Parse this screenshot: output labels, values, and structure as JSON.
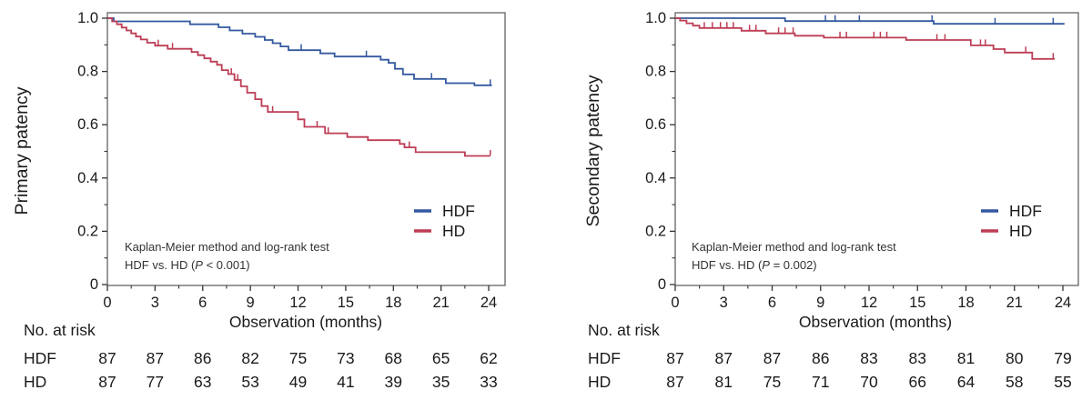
{
  "chart_data": [
    {
      "type": "line",
      "subtype": "kaplan-meier-step",
      "title": "",
      "ylabel": "Primary patency",
      "xlabel": "Observation (months)",
      "xlim": [
        0,
        25
      ],
      "ylim": [
        0,
        1.0
      ],
      "xticks": [
        0,
        3,
        6,
        9,
        12,
        15,
        18,
        21,
        24
      ],
      "ytick_values": [
        1.0,
        0.8,
        0.6,
        0.4,
        0.2,
        0
      ],
      "ytick_labels": [
        "1.0",
        "0.8",
        "0.6",
        "0.4",
        "0.2",
        "0"
      ],
      "grid": false,
      "legend_position": "inside-right-lower",
      "annotation": {
        "line1": "Kaplan-Meier method and log-rank test",
        "line2_pre": "HDF vs. HD (",
        "line2_italic": "P",
        "line2_post": " < 0.001)"
      },
      "series": [
        {
          "name": "HDF",
          "color": "#33599f",
          "steps": [
            [
              0,
              1.0
            ],
            [
              0.4,
              0.988
            ],
            [
              5.2,
              0.977
            ],
            [
              7.0,
              0.966
            ],
            [
              7.7,
              0.954
            ],
            [
              8.5,
              0.942
            ],
            [
              9.3,
              0.93
            ],
            [
              9.9,
              0.918
            ],
            [
              10.4,
              0.906
            ],
            [
              10.9,
              0.894
            ],
            [
              11.4,
              0.88
            ],
            [
              13.4,
              0.868
            ],
            [
              14.3,
              0.856
            ],
            [
              17.2,
              0.844
            ],
            [
              17.7,
              0.832
            ],
            [
              18.1,
              0.81
            ],
            [
              18.6,
              0.789
            ],
            [
              19.3,
              0.772
            ],
            [
              21.3,
              0.756
            ],
            [
              23.1,
              0.748
            ],
            [
              24.2,
              0.748
            ]
          ],
          "censors": [
            [
              12.2,
              0.88
            ],
            [
              16.3,
              0.856
            ],
            [
              20.4,
              0.772
            ],
            [
              24.1,
              0.748
            ]
          ]
        },
        {
          "name": "HD",
          "color": "#bd3d55",
          "steps": [
            [
              0,
              1.0
            ],
            [
              0.3,
              0.988
            ],
            [
              0.6,
              0.977
            ],
            [
              0.9,
              0.965
            ],
            [
              1.2,
              0.954
            ],
            [
              1.5,
              0.943
            ],
            [
              1.8,
              0.931
            ],
            [
              2.1,
              0.92
            ],
            [
              2.5,
              0.908
            ],
            [
              3.0,
              0.897
            ],
            [
              3.8,
              0.885
            ],
            [
              5.3,
              0.873
            ],
            [
              5.7,
              0.861
            ],
            [
              6.1,
              0.849
            ],
            [
              6.5,
              0.837
            ],
            [
              6.9,
              0.825
            ],
            [
              7.2,
              0.805
            ],
            [
              7.6,
              0.79
            ],
            [
              8.0,
              0.768
            ],
            [
              8.4,
              0.744
            ],
            [
              8.8,
              0.72
            ],
            [
              9.3,
              0.696
            ],
            [
              9.7,
              0.67
            ],
            [
              10.1,
              0.648
            ],
            [
              12.0,
              0.62
            ],
            [
              12.4,
              0.592
            ],
            [
              13.7,
              0.568
            ],
            [
              15.1,
              0.554
            ],
            [
              16.4,
              0.542
            ],
            [
              18.4,
              0.528
            ],
            [
              18.7,
              0.515
            ],
            [
              19.4,
              0.497
            ],
            [
              22.5,
              0.483
            ],
            [
              24.1,
              0.483
            ]
          ],
          "censors": [
            [
              3.2,
              0.897
            ],
            [
              4.1,
              0.885
            ],
            [
              7.8,
              0.79
            ],
            [
              8.2,
              0.768
            ],
            [
              10.4,
              0.648
            ],
            [
              13.2,
              0.592
            ],
            [
              13.9,
              0.568
            ],
            [
              19.0,
              0.515
            ],
            [
              24.1,
              0.483
            ]
          ]
        }
      ],
      "risk_table": {
        "title": "No. at risk",
        "rows": [
          {
            "label": "HDF",
            "values": [
              87,
              87,
              86,
              82,
              75,
              73,
              68,
              65,
              62
            ]
          },
          {
            "label": "HD",
            "values": [
              87,
              77,
              63,
              53,
              49,
              41,
              39,
              35,
              33
            ]
          }
        ]
      }
    },
    {
      "type": "line",
      "subtype": "kaplan-meier-step",
      "title": "",
      "ylabel": "Secondary patency",
      "xlabel": "Observation (months)",
      "xlim": [
        0,
        25
      ],
      "ylim": [
        0,
        1.0
      ],
      "xticks": [
        0,
        3,
        6,
        9,
        12,
        15,
        18,
        21,
        24
      ],
      "ytick_values": [
        1.0,
        0.8,
        0.6,
        0.4,
        0.2,
        0
      ],
      "ytick_labels": [
        "1.0",
        "0.8",
        "0.6",
        "0.4",
        "0.2",
        "0"
      ],
      "grid": false,
      "legend_position": "inside-right-lower",
      "annotation": {
        "line1": "Kaplan-Meier method and log-rank test",
        "line2_pre": "HDF vs. HD (",
        "line2_italic": "P",
        "line2_post": " = 0.002)"
      },
      "series": [
        {
          "name": "HDF",
          "color": "#33599f",
          "steps": [
            [
              0,
              1.0
            ],
            [
              6.8,
              0.989
            ],
            [
              16.0,
              0.979
            ],
            [
              24.1,
              0.979
            ]
          ],
          "censors": [
            [
              9.3,
              0.989
            ],
            [
              9.9,
              0.989
            ],
            [
              11.4,
              0.989
            ],
            [
              15.9,
              0.989
            ],
            [
              19.8,
              0.979
            ],
            [
              23.4,
              0.979
            ]
          ]
        },
        {
          "name": "HD",
          "color": "#bd3d55",
          "steps": [
            [
              0,
              1.0
            ],
            [
              0.3,
              0.991
            ],
            [
              0.7,
              0.981
            ],
            [
              1.1,
              0.972
            ],
            [
              1.5,
              0.963
            ],
            [
              4.1,
              0.953
            ],
            [
              5.6,
              0.943
            ],
            [
              7.4,
              0.934
            ],
            [
              9.2,
              0.927
            ],
            [
              14.3,
              0.918
            ],
            [
              18.3,
              0.898
            ],
            [
              19.7,
              0.884
            ],
            [
              20.4,
              0.871
            ],
            [
              22.1,
              0.847
            ],
            [
              23.5,
              0.847
            ]
          ],
          "censors": [
            [
              1.8,
              0.963
            ],
            [
              2.3,
              0.963
            ],
            [
              2.8,
              0.963
            ],
            [
              3.2,
              0.963
            ],
            [
              3.6,
              0.963
            ],
            [
              4.6,
              0.953
            ],
            [
              5.0,
              0.953
            ],
            [
              6.4,
              0.943
            ],
            [
              6.8,
              0.943
            ],
            [
              7.3,
              0.943
            ],
            [
              10.2,
              0.927
            ],
            [
              10.6,
              0.927
            ],
            [
              12.3,
              0.927
            ],
            [
              12.7,
              0.927
            ],
            [
              13.1,
              0.927
            ],
            [
              16.2,
              0.918
            ],
            [
              16.7,
              0.918
            ],
            [
              18.9,
              0.898
            ],
            [
              19.2,
              0.898
            ],
            [
              21.7,
              0.871
            ],
            [
              23.4,
              0.847
            ]
          ]
        }
      ],
      "risk_table": {
        "title": "No. at risk",
        "rows": [
          {
            "label": "HDF",
            "values": [
              87,
              87,
              87,
              86,
              83,
              83,
              81,
              80,
              79
            ]
          },
          {
            "label": "HD",
            "values": [
              87,
              81,
              75,
              71,
              70,
              66,
              64,
              58,
              55
            ]
          }
        ]
      }
    }
  ]
}
